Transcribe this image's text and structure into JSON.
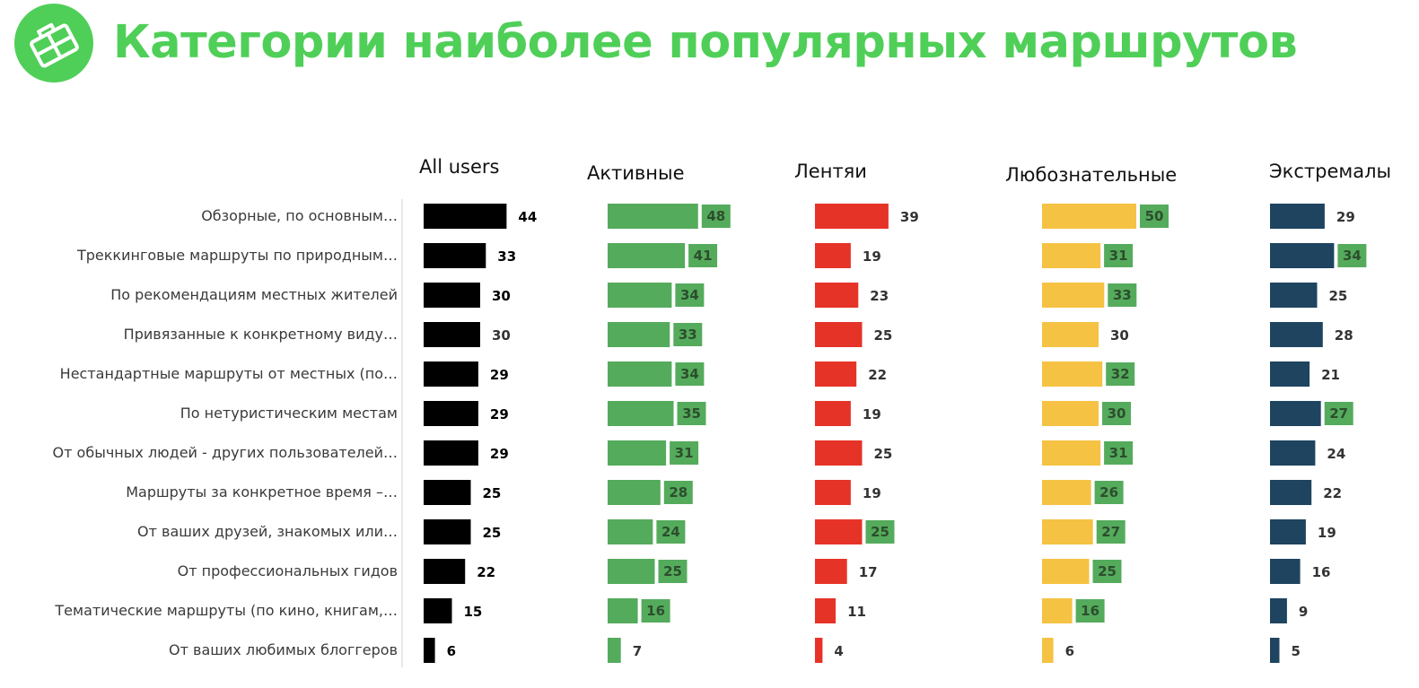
{
  "page": {
    "title": "Категории наиболее популярных маршрутов",
    "accent_color": "#4fcf58",
    "logo_icon": "suitcase-icon"
  },
  "chart_data": {
    "type": "bar",
    "orientation": "horizontal",
    "title": "Категории наиболее популярных маршрутов",
    "categories": [
      "Обзорные, по основным…",
      "Треккинговые маршруты по природным…",
      "По рекомендациям местных жителей",
      "Привязанные к конкретному виду…",
      "Нестандартные маршруты от местных (по…",
      "По нетуристическим местам",
      "От обычных людей - других пользователей…",
      "Маршруты за конкретное время –…",
      "От ваших друзей, знакомых или…",
      "От профессиональных гидов",
      "Тематические маршруты (по кино, книгам,…",
      "От ваших любимых блоггеров"
    ],
    "series": [
      {
        "name": "All users",
        "color": "#000000",
        "values": [
          44,
          33,
          30,
          30,
          29,
          29,
          29,
          25,
          25,
          22,
          15,
          6
        ],
        "highlighted": [
          true,
          true,
          true,
          false,
          true,
          true,
          true,
          true,
          true,
          true,
          true,
          true
        ]
      },
      {
        "name": "Активные",
        "color": "#55ab5c",
        "values": [
          48,
          41,
          34,
          33,
          34,
          35,
          31,
          28,
          24,
          25,
          16,
          7
        ],
        "highlighted": [
          true,
          true,
          true,
          true,
          true,
          true,
          true,
          true,
          true,
          true,
          true,
          false
        ]
      },
      {
        "name": "Лентяи",
        "color": "#e63328",
        "values": [
          39,
          19,
          23,
          25,
          22,
          19,
          25,
          19,
          25,
          17,
          11,
          4
        ],
        "highlighted": [
          false,
          false,
          false,
          false,
          false,
          false,
          false,
          false,
          true,
          false,
          false,
          false
        ]
      },
      {
        "name": "Любознательные",
        "color": "#f5c243",
        "values": [
          50,
          31,
          33,
          30,
          32,
          30,
          31,
          26,
          27,
          25,
          16,
          6
        ],
        "highlighted": [
          true,
          true,
          true,
          false,
          true,
          true,
          true,
          true,
          true,
          true,
          true,
          false
        ]
      },
      {
        "name": "Экстремалы",
        "color": "#1e4460",
        "values": [
          29,
          34,
          25,
          28,
          21,
          27,
          24,
          22,
          19,
          16,
          9,
          5
        ],
        "highlighted": [
          false,
          true,
          false,
          false,
          false,
          true,
          false,
          false,
          false,
          false,
          false,
          false
        ]
      }
    ],
    "highlight_color": "#55ab5c",
    "highlight_text_color": "#2c4e2e",
    "grid": false,
    "legend": "series titles above each column"
  }
}
